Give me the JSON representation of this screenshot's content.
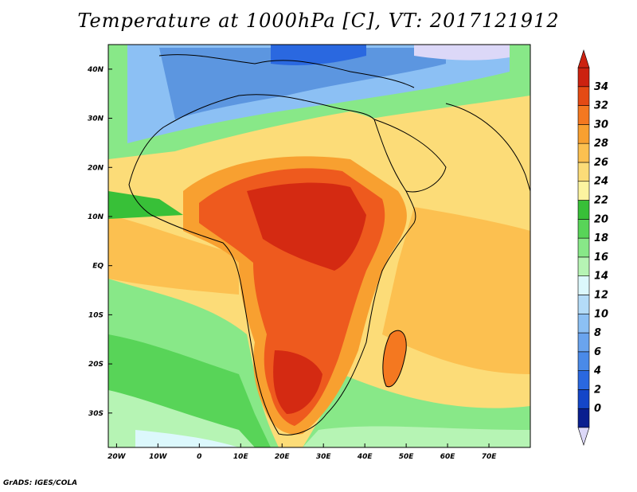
{
  "title": "Temperature at 1000hPa [C], VT: 2017121912",
  "credit": "GrADS: IGES/COLA",
  "map": {
    "lon_range": [
      -22,
      80
    ],
    "lat_range": [
      -37,
      45
    ],
    "lon_ticks": [
      {
        "value": -20,
        "label": "20W"
      },
      {
        "value": -10,
        "label": "10W"
      },
      {
        "value": 0,
        "label": "0"
      },
      {
        "value": 10,
        "label": "10E"
      },
      {
        "value": 20,
        "label": "20E"
      },
      {
        "value": 30,
        "label": "30E"
      },
      {
        "value": 40,
        "label": "40E"
      },
      {
        "value": 50,
        "label": "50E"
      },
      {
        "value": 60,
        "label": "60E"
      },
      {
        "value": 70,
        "label": "70E"
      }
    ],
    "lat_ticks": [
      {
        "value": 40,
        "label": "40N"
      },
      {
        "value": 30,
        "label": "30N"
      },
      {
        "value": 20,
        "label": "20N"
      },
      {
        "value": 10,
        "label": "10N"
      },
      {
        "value": 0,
        "label": "EQ"
      },
      {
        "value": -10,
        "label": "10S"
      },
      {
        "value": -20,
        "label": "20S"
      },
      {
        "value": -30,
        "label": "30S"
      }
    ]
  },
  "colorbar": {
    "labels": [
      "0",
      "2",
      "4",
      "6",
      "8",
      "10",
      "12",
      "14",
      "16",
      "18",
      "20",
      "22",
      "24",
      "26",
      "28",
      "30",
      "32",
      "34"
    ],
    "colors": [
      "#0a1f8f",
      "#1446c8",
      "#2a68e0",
      "#4a8ae8",
      "#6aa4ee",
      "#8cc0f4",
      "#b4dcf8",
      "#dcf8fc",
      "#b6f4b4",
      "#88e888",
      "#58d458",
      "#38c038",
      "#fcf4a0",
      "#fcdc78",
      "#fcc050",
      "#f8a030",
      "#f47820",
      "#e44a14",
      "#cc2210"
    ],
    "low_arrow_color": "#dcd8f8",
    "high_arrow_color": "#cc2210"
  },
  "colors": {
    "africa_hot": "#d42a12",
    "africa_warm": "#ee5a1e",
    "sahara": "#f2a23a",
    "north_cool": "#5c96e0",
    "ocean_warm": "#fcd070",
    "ocean_green": "#9ee89c",
    "ocean_deep_green": "#54cc54"
  }
}
